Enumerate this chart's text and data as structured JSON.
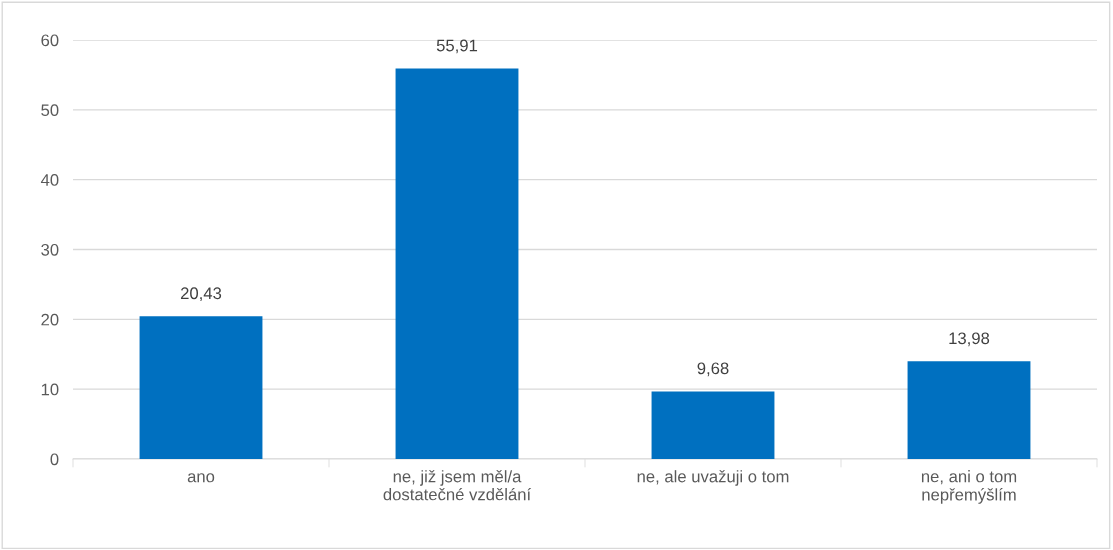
{
  "chart_data": {
    "type": "bar",
    "categories": [
      "ano",
      "ne, již jsem měl/a\ndostatečné vzdělání",
      "ne, ale uvažuji o tom",
      "ne, ani o tom\nnepřemýšlím"
    ],
    "values": [
      20.43,
      55.91,
      9.68,
      13.98
    ],
    "value_labels": [
      "20,43",
      "55,91",
      "9,68",
      "13,98"
    ],
    "color": "#0070c0",
    "ylim": [
      0,
      60
    ],
    "yticks": [
      0,
      10,
      20,
      30,
      40,
      50,
      60
    ],
    "grid": "y"
  }
}
